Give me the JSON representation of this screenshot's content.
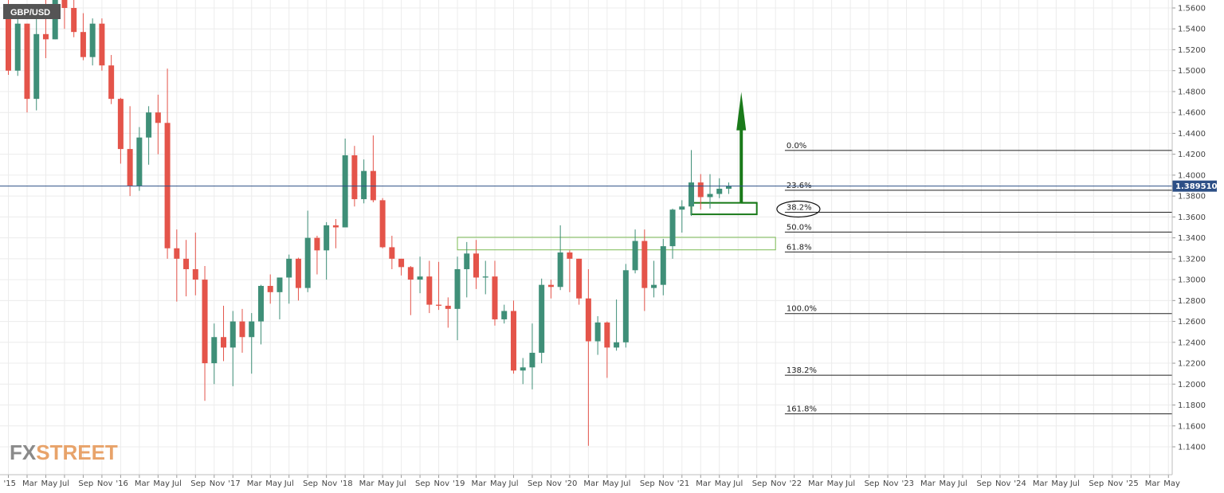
{
  "symbol": "GBP/USD",
  "last_price_label": "1.389510",
  "watermark": {
    "part1": "FX",
    "part2": "STREET"
  },
  "colors": {
    "bull": "#3f8f78",
    "bear": "#e4544a",
    "grid": "#ececec",
    "price_line": "#2d4f86",
    "badge": "#2d4f86",
    "annotation": "#1a7a1a",
    "zone": "#7cbb55"
  },
  "chart_data": {
    "type": "candlestick",
    "title": "GBP/USD",
    "ylim": [
      1.12,
      1.57
    ],
    "y_ticks": [
      "1.1400",
      "1.1600",
      "1.1800",
      "1.2000",
      "1.2200",
      "1.2400",
      "1.2600",
      "1.2800",
      "1.3000",
      "1.3200",
      "1.3400",
      "1.3600",
      "1.3800",
      "1.4000",
      "1.4200",
      "1.4400",
      "1.4600",
      "1.4800",
      "1.5000",
      "1.5200",
      "1.5400",
      "1.5600"
    ],
    "x_ticks": [
      "'15",
      "Mar",
      "May",
      "Jul",
      "Sep",
      "Nov",
      "'16",
      "Mar",
      "May",
      "Jul",
      "Sep",
      "Nov",
      "'17",
      "Mar",
      "May",
      "Jul",
      "Sep",
      "Nov",
      "'18",
      "Mar",
      "May",
      "Jul",
      "Sep",
      "Nov",
      "'19",
      "Mar",
      "May",
      "Jul",
      "Sep",
      "Nov",
      "'20",
      "Mar",
      "May",
      "Jul",
      "Sep",
      "Nov",
      "'21",
      "Mar",
      "May",
      "Jul",
      "Sep",
      "Nov",
      "'22",
      "Mar",
      "May",
      "Jul",
      "Sep",
      "Nov",
      "'23",
      "Mar",
      "May",
      "Jul",
      "Sep",
      "Nov",
      "'24",
      "Mar",
      "May",
      "Jul",
      "Sep",
      "Nov",
      "'25",
      "Mar",
      "May"
    ],
    "candles": [
      {
        "m": "2015-01",
        "o": 1.56,
        "h": 1.57,
        "l": 1.496,
        "c": 1.5
      },
      {
        "m": "2015-02",
        "o": 1.5,
        "h": 1.551,
        "l": 1.495,
        "c": 1.545
      },
      {
        "m": "2015-03",
        "o": 1.545,
        "h": 1.545,
        "l": 1.46,
        "c": 1.473
      },
      {
        "m": "2015-04",
        "o": 1.473,
        "h": 1.559,
        "l": 1.462,
        "c": 1.535
      },
      {
        "m": "2015-05",
        "o": 1.535,
        "h": 1.57,
        "l": 1.512,
        "c": 1.53
      },
      {
        "m": "2015-06",
        "o": 1.53,
        "h": 1.59,
        "l": 1.53,
        "c": 1.57
      },
      {
        "m": "2015-07",
        "o": 1.57,
        "h": 1.58,
        "l": 1.54,
        "c": 1.56
      },
      {
        "m": "2015-08",
        "o": 1.56,
        "h": 1.575,
        "l": 1.532,
        "c": 1.537
      },
      {
        "m": "2015-09",
        "o": 1.537,
        "h": 1.555,
        "l": 1.51,
        "c": 1.513
      },
      {
        "m": "2015-10",
        "o": 1.513,
        "h": 1.55,
        "l": 1.505,
        "c": 1.545
      },
      {
        "m": "2015-11",
        "o": 1.545,
        "h": 1.55,
        "l": 1.5,
        "c": 1.505
      },
      {
        "m": "2015-12",
        "o": 1.505,
        "h": 1.515,
        "l": 1.468,
        "c": 1.473
      },
      {
        "m": "2016-01",
        "o": 1.473,
        "h": 1.474,
        "l": 1.411,
        "c": 1.425
      },
      {
        "m": "2016-02",
        "o": 1.425,
        "h": 1.466,
        "l": 1.38,
        "c": 1.39
      },
      {
        "m": "2016-03",
        "o": 1.39,
        "h": 1.446,
        "l": 1.385,
        "c": 1.436
      },
      {
        "m": "2016-04",
        "o": 1.436,
        "h": 1.466,
        "l": 1.41,
        "c": 1.46
      },
      {
        "m": "2016-05",
        "o": 1.46,
        "h": 1.477,
        "l": 1.42,
        "c": 1.45
      },
      {
        "m": "2016-06",
        "o": 1.45,
        "h": 1.502,
        "l": 1.32,
        "c": 1.33
      },
      {
        "m": "2016-07",
        "o": 1.33,
        "h": 1.348,
        "l": 1.279,
        "c": 1.32
      },
      {
        "m": "2016-08",
        "o": 1.32,
        "h": 1.338,
        "l": 1.284,
        "c": 1.31
      },
      {
        "m": "2016-09",
        "o": 1.31,
        "h": 1.345,
        "l": 1.285,
        "c": 1.3
      },
      {
        "m": "2016-10",
        "o": 1.3,
        "h": 1.313,
        "l": 1.184,
        "c": 1.22
      },
      {
        "m": "2016-11",
        "o": 1.22,
        "h": 1.258,
        "l": 1.2,
        "c": 1.245
      },
      {
        "m": "2016-12",
        "o": 1.245,
        "h": 1.275,
        "l": 1.222,
        "c": 1.235
      },
      {
        "m": "2017-01",
        "o": 1.235,
        "h": 1.27,
        "l": 1.198,
        "c": 1.26
      },
      {
        "m": "2017-02",
        "o": 1.26,
        "h": 1.272,
        "l": 1.23,
        "c": 1.245
      },
      {
        "m": "2017-03",
        "o": 1.245,
        "h": 1.268,
        "l": 1.21,
        "c": 1.26
      },
      {
        "m": "2017-04",
        "o": 1.26,
        "h": 1.295,
        "l": 1.238,
        "c": 1.294
      },
      {
        "m": "2017-05",
        "o": 1.294,
        "h": 1.305,
        "l": 1.277,
        "c": 1.288
      },
      {
        "m": "2017-06",
        "o": 1.288,
        "h": 1.3,
        "l": 1.262,
        "c": 1.302
      },
      {
        "m": "2017-07",
        "o": 1.302,
        "h": 1.324,
        "l": 1.277,
        "c": 1.32
      },
      {
        "m": "2017-08",
        "o": 1.32,
        "h": 1.321,
        "l": 1.28,
        "c": 1.292
      },
      {
        "m": "2017-09",
        "o": 1.292,
        "h": 1.366,
        "l": 1.288,
        "c": 1.34
      },
      {
        "m": "2017-10",
        "o": 1.34,
        "h": 1.342,
        "l": 1.305,
        "c": 1.328
      },
      {
        "m": "2017-11",
        "o": 1.328,
        "h": 1.355,
        "l": 1.3,
        "c": 1.352
      },
      {
        "m": "2017-12",
        "o": 1.352,
        "h": 1.358,
        "l": 1.33,
        "c": 1.35
      },
      {
        "m": "2018-01",
        "o": 1.35,
        "h": 1.435,
        "l": 1.35,
        "c": 1.419
      },
      {
        "m": "2018-02",
        "o": 1.419,
        "h": 1.428,
        "l": 1.37,
        "c": 1.377
      },
      {
        "m": "2018-03",
        "o": 1.377,
        "h": 1.415,
        "l": 1.373,
        "c": 1.404
      },
      {
        "m": "2018-04",
        "o": 1.404,
        "h": 1.438,
        "l": 1.374,
        "c": 1.376
      },
      {
        "m": "2018-05",
        "o": 1.376,
        "h": 1.378,
        "l": 1.33,
        "c": 1.331
      },
      {
        "m": "2018-06",
        "o": 1.331,
        "h": 1.342,
        "l": 1.31,
        "c": 1.32
      },
      {
        "m": "2018-07",
        "o": 1.32,
        "h": 1.32,
        "l": 1.304,
        "c": 1.312
      },
      {
        "m": "2018-08",
        "o": 1.312,
        "h": 1.313,
        "l": 1.266,
        "c": 1.3
      },
      {
        "m": "2018-09",
        "o": 1.3,
        "h": 1.322,
        "l": 1.287,
        "c": 1.303
      },
      {
        "m": "2018-10",
        "o": 1.303,
        "h": 1.318,
        "l": 1.268,
        "c": 1.276
      },
      {
        "m": "2018-11",
        "o": 1.276,
        "h": 1.317,
        "l": 1.271,
        "c": 1.275
      },
      {
        "m": "2018-12",
        "o": 1.275,
        "h": 1.283,
        "l": 1.254,
        "c": 1.272
      },
      {
        "m": "2019-01",
        "o": 1.272,
        "h": 1.322,
        "l": 1.242,
        "c": 1.31
      },
      {
        "m": "2019-02",
        "o": 1.31,
        "h": 1.336,
        "l": 1.283,
        "c": 1.325
      },
      {
        "m": "2019-03",
        "o": 1.325,
        "h": 1.338,
        "l": 1.291,
        "c": 1.302
      },
      {
        "m": "2019-04",
        "o": 1.302,
        "h": 1.318,
        "l": 1.286,
        "c": 1.303
      },
      {
        "m": "2019-05",
        "o": 1.303,
        "h": 1.318,
        "l": 1.256,
        "c": 1.262
      },
      {
        "m": "2019-06",
        "o": 1.262,
        "h": 1.276,
        "l": 1.258,
        "c": 1.27
      },
      {
        "m": "2019-07",
        "o": 1.27,
        "h": 1.28,
        "l": 1.21,
        "c": 1.213
      },
      {
        "m": "2019-08",
        "o": 1.213,
        "h": 1.225,
        "l": 1.2,
        "c": 1.216
      },
      {
        "m": "2019-09",
        "o": 1.216,
        "h": 1.258,
        "l": 1.195,
        "c": 1.23
      },
      {
        "m": "2019-10",
        "o": 1.23,
        "h": 1.301,
        "l": 1.22,
        "c": 1.295
      },
      {
        "m": "2019-11",
        "o": 1.295,
        "h": 1.3,
        "l": 1.282,
        "c": 1.293
      },
      {
        "m": "2019-12",
        "o": 1.293,
        "h": 1.352,
        "l": 1.29,
        "c": 1.326
      },
      {
        "m": "2020-01",
        "o": 1.326,
        "h": 1.328,
        "l": 1.288,
        "c": 1.32
      },
      {
        "m": "2020-02",
        "o": 1.32,
        "h": 1.32,
        "l": 1.276,
        "c": 1.282
      },
      {
        "m": "2020-03",
        "o": 1.282,
        "h": 1.31,
        "l": 1.141,
        "c": 1.241
      },
      {
        "m": "2020-04",
        "o": 1.241,
        "h": 1.265,
        "l": 1.228,
        "c": 1.259
      },
      {
        "m": "2020-05",
        "o": 1.259,
        "h": 1.26,
        "l": 1.206,
        "c": 1.235
      },
      {
        "m": "2020-06",
        "o": 1.235,
        "h": 1.281,
        "l": 1.232,
        "c": 1.24
      },
      {
        "m": "2020-07",
        "o": 1.24,
        "h": 1.315,
        "l": 1.235,
        "c": 1.309
      },
      {
        "m": "2020-08",
        "o": 1.309,
        "h": 1.348,
        "l": 1.306,
        "c": 1.337
      },
      {
        "m": "2020-09",
        "o": 1.337,
        "h": 1.348,
        "l": 1.27,
        "c": 1.292
      },
      {
        "m": "2020-10",
        "o": 1.292,
        "h": 1.318,
        "l": 1.283,
        "c": 1.295
      },
      {
        "m": "2020-11",
        "o": 1.295,
        "h": 1.339,
        "l": 1.285,
        "c": 1.332
      },
      {
        "m": "2020-12",
        "o": 1.332,
        "h": 1.368,
        "l": 1.32,
        "c": 1.367
      },
      {
        "m": "2021-01",
        "o": 1.367,
        "h": 1.376,
        "l": 1.345,
        "c": 1.37
      },
      {
        "m": "2021-02",
        "o": 1.37,
        "h": 1.424,
        "l": 1.361,
        "c": 1.393
      },
      {
        "m": "2021-03",
        "o": 1.393,
        "h": 1.401,
        "l": 1.367,
        "c": 1.379
      },
      {
        "m": "2021-04",
        "o": 1.379,
        "h": 1.401,
        "l": 1.368,
        "c": 1.382
      },
      {
        "m": "2021-05",
        "o": 1.382,
        "h": 1.397,
        "l": 1.378,
        "c": 1.387
      },
      {
        "m": "2021-06",
        "o": 1.387,
        "h": 1.393,
        "l": 1.382,
        "c": 1.3895
      }
    ],
    "last_price": 1.38951,
    "fibonacci": [
      {
        "label": "0.0%",
        "value": 1.4237
      },
      {
        "label": "23.6%",
        "value": 1.3855
      },
      {
        "label": "38.2%",
        "value": 1.3645
      },
      {
        "label": "50.0%",
        "value": 1.3455
      },
      {
        "label": "61.8%",
        "value": 1.3265
      },
      {
        "label": "100.0%",
        "value": 1.2675
      },
      {
        "label": "138.2%",
        "value": 1.2085
      },
      {
        "label": "161.8%",
        "value": 1.1715
      }
    ],
    "zones": [
      {
        "from": "2019-01",
        "to": "2021-11",
        "low": 1.3285,
        "high": 1.3405
      },
      {
        "from": "2021-02",
        "to": "2021-09",
        "low": 1.3625,
        "high": 1.3735
      }
    ],
    "target_arrow": {
      "month": "2021-07",
      "from": 1.3735,
      "to": 1.4795
    },
    "highlight_ellipse_label": "38.2%",
    "legend": "none",
    "grid": true
  }
}
